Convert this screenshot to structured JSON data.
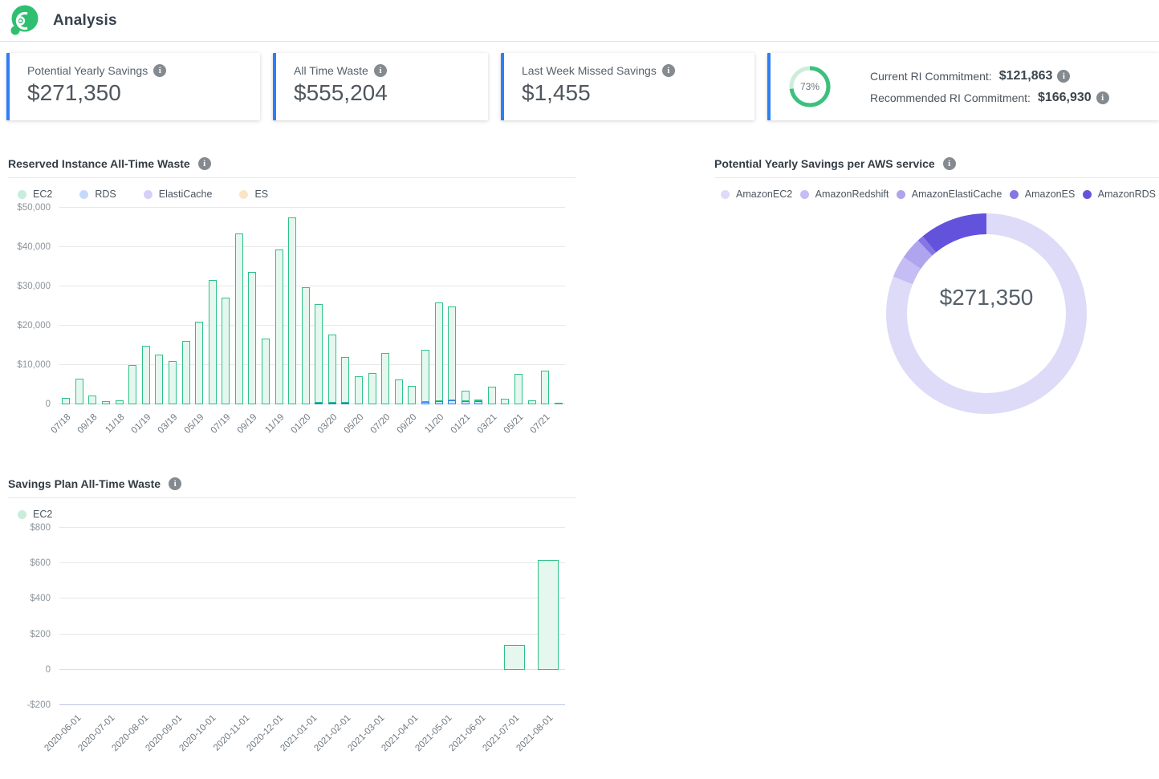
{
  "header": {
    "title": "Analysis",
    "logo": "spot-logo-icon"
  },
  "colors": {
    "accent_blue": "#2f7df6",
    "logo_green": "#2fbf71",
    "gauge_green": "#3bc17d",
    "gauge_track": "#cdedda"
  },
  "cards": [
    {
      "label": "Potential Yearly Savings",
      "value": "$271,350"
    },
    {
      "label": "All Time Waste",
      "value": "$555,204"
    },
    {
      "label": "Last Week Missed Savings",
      "value": "$1,455"
    },
    {
      "gauge_percent": "73%",
      "gauge_value": 73,
      "rows": [
        {
          "label": "Current RI Commitment:",
          "value": "$121,863"
        },
        {
          "label": "Recommended RI Commitment:",
          "value": "$166,930"
        }
      ]
    }
  ],
  "chart_data": [
    {
      "id": "ri_waste",
      "type": "bar",
      "stacked": true,
      "title": "Reserved Instance All-Time Waste",
      "legend": [
        {
          "label": "EC2",
          "dot": "#c8edda"
        },
        {
          "label": "RDS",
          "dot": "#c5dafb"
        },
        {
          "label": "ElastiCache",
          "dot": "#d7cff8"
        },
        {
          "label": "ES",
          "dot": "#fbe5c9"
        }
      ],
      "categories": [
        "07/18",
        "08/18",
        "09/18",
        "10/18",
        "11/18",
        "12/18",
        "01/19",
        "02/19",
        "03/19",
        "04/19",
        "05/19",
        "06/19",
        "07/19",
        "08/19",
        "09/19",
        "10/19",
        "11/19",
        "12/19",
        "01/20",
        "02/20",
        "03/20",
        "04/20",
        "05/20",
        "06/20",
        "07/20",
        "08/20",
        "09/20",
        "10/20",
        "11/20",
        "12/20",
        "01/21",
        "02/21",
        "03/21",
        "04/21",
        "05/21",
        "06/21",
        "07/21",
        "08/21"
      ],
      "label_every": 2,
      "ylim": [
        0,
        50000
      ],
      "yticks": [
        {
          "v": 0,
          "label": "0",
          "line_color": "#d9dde6"
        },
        {
          "v": 10000,
          "label": "$10,000"
        },
        {
          "v": 20000,
          "label": "$20,000"
        },
        {
          "v": 30000,
          "label": "$30,000"
        },
        {
          "v": 40000,
          "label": "$40,000"
        },
        {
          "v": 50000,
          "label": "$50,000"
        }
      ],
      "series": [
        {
          "name": "RDS",
          "stroke": "#2f7df6",
          "fill": "#d9e7fd",
          "values": [
            0,
            0,
            0,
            0,
            0,
            0,
            0,
            0,
            0,
            0,
            0,
            0,
            0,
            0,
            0,
            0,
            0,
            0,
            0,
            400,
            400,
            400,
            0,
            0,
            0,
            0,
            0,
            600,
            800,
            1000,
            800,
            900,
            0,
            0,
            0,
            0,
            0,
            0
          ]
        },
        {
          "name": "EC2",
          "stroke": "#2dc287",
          "fill": "#e6f7ef",
          "values": [
            1600,
            6600,
            2200,
            800,
            1100,
            10000,
            14800,
            12600,
            11000,
            16100,
            21000,
            31700,
            27100,
            43400,
            33600,
            16700,
            39300,
            47500,
            29700,
            25200,
            17400,
            11600,
            7200,
            7900,
            13000,
            6300,
            4700,
            13300,
            25100,
            23900,
            2700,
            300,
            4400,
            1500,
            7800,
            1000,
            8600,
            400
          ]
        }
      ]
    },
    {
      "id": "sp_waste",
      "type": "bar",
      "stacked": false,
      "title": "Savings Plan All-Time Waste",
      "legend": [
        {
          "label": "EC2",
          "dot": "#c8edda"
        }
      ],
      "categories": [
        "2020-06-01",
        "2020-07-01",
        "2020-08-01",
        "2020-09-01",
        "2020-10-01",
        "2020-11-01",
        "2020-12-01",
        "2021-01-01",
        "2021-02-01",
        "2021-03-01",
        "2021-04-01",
        "2021-05-01",
        "2021-06-01",
        "2021-07-01",
        "2021-08-01"
      ],
      "label_every": 1,
      "ylim": [
        -200,
        800
      ],
      "yticks": [
        {
          "v": -200,
          "label": "-$200",
          "line_color": "#b9c6ea"
        },
        {
          "v": 0,
          "label": "0",
          "line_color": "#d9dde6"
        },
        {
          "v": 200,
          "label": "$200"
        },
        {
          "v": 400,
          "label": "$400"
        },
        {
          "v": 600,
          "label": "$600"
        },
        {
          "v": 800,
          "label": "$800"
        }
      ],
      "series": [
        {
          "name": "EC2",
          "stroke": "#2dc287",
          "fill": "#e6f7ef",
          "values": [
            0,
            0,
            0,
            0,
            0,
            0,
            0,
            0,
            0,
            0,
            0,
            0,
            0,
            140,
            620
          ]
        }
      ]
    },
    {
      "id": "savings_per_service",
      "type": "donut",
      "title": "Potential Yearly Savings per AWS service",
      "center_label": "$271,350",
      "total": 271350,
      "segments": [
        {
          "name": "AmazonEC2",
          "color": "#dedbf8",
          "percent": 81
        },
        {
          "name": "AmazonRedshift",
          "color": "#c5bdf3",
          "percent": 3.5
        },
        {
          "name": "AmazonElastiCache",
          "color": "#afa5ee",
          "percent": 3.5
        },
        {
          "name": "AmazonES",
          "color": "#8476e4",
          "percent": 1
        },
        {
          "name": "AmazonRDS",
          "color": "#6353dc",
          "percent": 11
        }
      ]
    }
  ]
}
